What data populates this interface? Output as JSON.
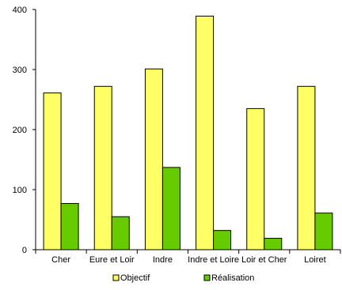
{
  "chart_data": {
    "type": "bar",
    "categories": [
      "Cher",
      "Eure et Loir",
      "Indre",
      "Indre et Loire",
      "Loir et Cher",
      "Loiret"
    ],
    "series": [
      {
        "name": "Objectif",
        "values": [
          261,
          272,
          301,
          389,
          235,
          272
        ],
        "color": "#FFFF66"
      },
      {
        "name": "Réalisation",
        "values": [
          77,
          55,
          137,
          32,
          19,
          61
        ],
        "color": "#66CC00"
      }
    ],
    "ylim": [
      0,
      400
    ],
    "yticks": [
      "0",
      "100",
      "200",
      "300",
      "400"
    ],
    "grid": false,
    "legend_position": "bottom"
  }
}
